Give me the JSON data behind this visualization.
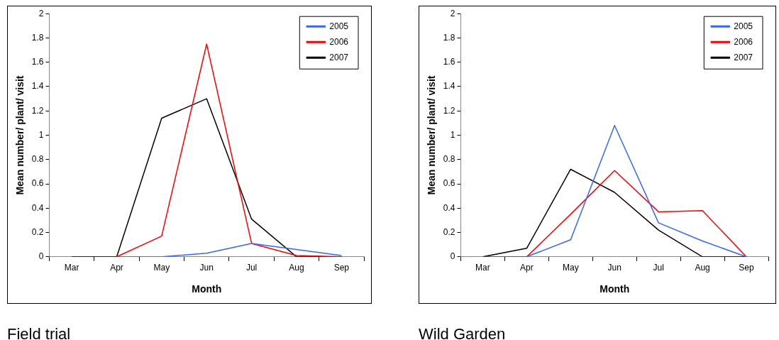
{
  "chart_data": [
    {
      "type": "line",
      "xlabel": "Month",
      "ylabel": "Mean number/ plant/ visit",
      "categories": [
        "Mar",
        "Apr",
        "May",
        "Jun",
        "Jul",
        "Aug",
        "Sep"
      ],
      "ylim": [
        0,
        2
      ],
      "yticks": [
        0,
        {
          "value": 0.2,
          "label": "0.2"
        },
        {
          "value": 0.4,
          "label": "0.4"
        },
        {
          "value": 0.6,
          "label": "0.6"
        },
        {
          "value": 0.8,
          "label": "0.8"
        },
        1,
        {
          "value": 1.2,
          "label": "1.2"
        },
        {
          "value": 1.4,
          "label": "1.4"
        },
        {
          "value": 1.6,
          "label": "1.6"
        },
        {
          "value": 1.8,
          "label": "1.8"
        },
        2
      ],
      "grid": false,
      "legend": "top right",
      "marker": "none",
      "annotations": [
        "Field trial"
      ],
      "series": [
        {
          "name": "2005",
          "color": "#3366ff",
          "values": [
            null,
            0,
            0,
            0.03,
            0.11,
            0.06,
            0.01
          ]
        },
        {
          "name": "2006",
          "color": "#ff0000",
          "values": [
            null,
            0,
            0.17,
            1.75,
            0.11,
            0.01,
            0
          ]
        },
        {
          "name": "2007",
          "color": "#000000",
          "values": [
            0,
            0,
            1.14,
            1.3,
            0.31,
            0,
            0
          ]
        }
      ]
    },
    {
      "type": "line",
      "xlabel": "Month",
      "ylabel": "Mean number/ plant/ visit",
      "categories": [
        "Mar",
        "Apr",
        "May",
        "Jun",
        "Jul",
        "Aug",
        "Sep"
      ],
      "ylim": [
        0,
        2
      ],
      "yticks": [
        0,
        {
          "value": 0.2,
          "label": "0.2"
        },
        {
          "value": 0.4,
          "label": "0.4"
        },
        {
          "value": 0.6,
          "label": "0.6"
        },
        {
          "value": 0.8,
          "label": "0.8"
        },
        1,
        {
          "value": 1.2,
          "label": "1.2"
        },
        {
          "value": 1.4,
          "label": "1.4"
        },
        {
          "value": 1.6,
          "label": "1.6"
        },
        {
          "value": 1.8,
          "label": "1.8"
        },
        2
      ],
      "grid": false,
      "legend": "top right",
      "marker": "none",
      "annotations": [
        "Wild Garden"
      ],
      "series": [
        {
          "name": "2005",
          "color": "#3366ff",
          "values": [
            null,
            0,
            0.14,
            1.08,
            0.28,
            0.13,
            0
          ]
        },
        {
          "name": "2006",
          "color": "#ff0000",
          "values": [
            0,
            0,
            0.35,
            0.71,
            0.37,
            0.38,
            0
          ]
        },
        {
          "name": "2007",
          "color": "#000000",
          "values": [
            0,
            0.07,
            0.72,
            0.53,
            0.22,
            0,
            0
          ]
        }
      ]
    }
  ]
}
